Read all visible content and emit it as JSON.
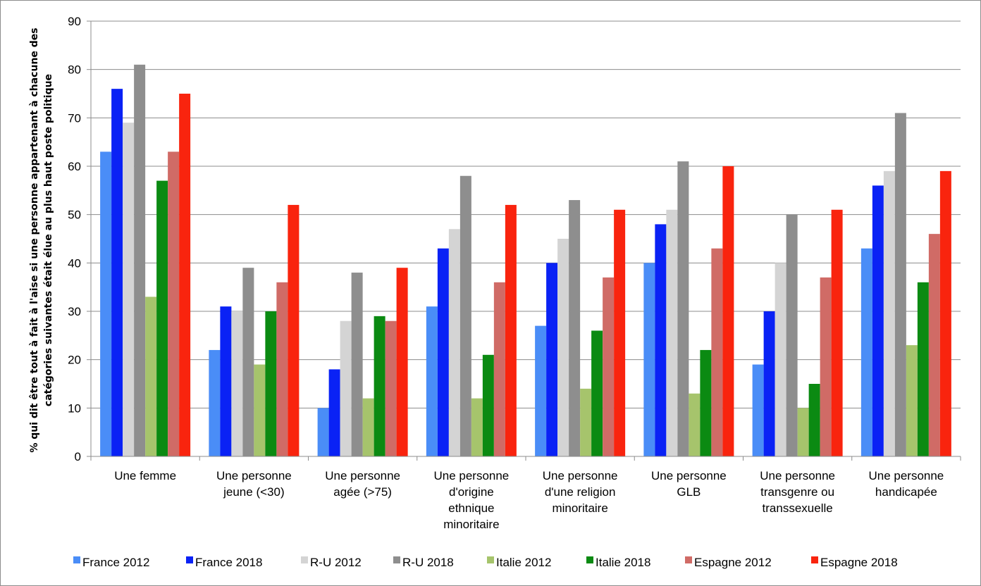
{
  "chart_data": {
    "type": "bar",
    "ylabel_lines": [
      "% qui dit être tout à fait à l'aise si une personne appartenant à chacune des",
      "catégories suivantes était élue au plus haut poste politique"
    ],
    "ylim": [
      0,
      90
    ],
    "yticks": [
      0,
      10,
      20,
      30,
      40,
      50,
      60,
      70,
      80,
      90
    ],
    "grid": true,
    "legend_position": "bottom",
    "categories": [
      [
        "Une femme"
      ],
      [
        "Une personne",
        "jeune (<30)"
      ],
      [
        "Une personne",
        "agée (>75)"
      ],
      [
        "Une personne",
        "d'origine",
        "ethnique",
        "minoritaire"
      ],
      [
        "Une personne",
        "d'une religion",
        "minoritaire"
      ],
      [
        "Une personne",
        "GLB"
      ],
      [
        "Une personne",
        "transgenre ou",
        "transsexuelle"
      ],
      [
        "Une personne",
        "handicapée"
      ]
    ],
    "series": [
      {
        "name": "France 2012",
        "color": "#4a8df7",
        "values": [
          63,
          22,
          10,
          31,
          27,
          40,
          19,
          43
        ]
      },
      {
        "name": "France 2018",
        "color": "#0a22f5",
        "values": [
          76,
          31,
          18,
          43,
          40,
          48,
          30,
          56
        ]
      },
      {
        "name": "R-U 2012",
        "color": "#d4d4d4",
        "values": [
          69,
          30,
          28,
          47,
          45,
          51,
          40,
          59
        ]
      },
      {
        "name": "R-U 2018",
        "color": "#8e8e8e",
        "values": [
          81,
          39,
          38,
          58,
          53,
          61,
          50,
          71
        ]
      },
      {
        "name": "Italie 2012",
        "color": "#a6c46c",
        "values": [
          33,
          19,
          12,
          12,
          14,
          13,
          10,
          23
        ]
      },
      {
        "name": "Italie 2018",
        "color": "#0b8a12",
        "values": [
          57,
          30,
          29,
          21,
          26,
          22,
          15,
          36
        ]
      },
      {
        "name": "Espagne 2012",
        "color": "#d06b66",
        "values": [
          63,
          36,
          28,
          36,
          37,
          43,
          37,
          46
        ]
      },
      {
        "name": "Espagne 2018",
        "color": "#f9240e",
        "values": [
          75,
          52,
          39,
          52,
          51,
          60,
          51,
          59
        ]
      }
    ]
  }
}
